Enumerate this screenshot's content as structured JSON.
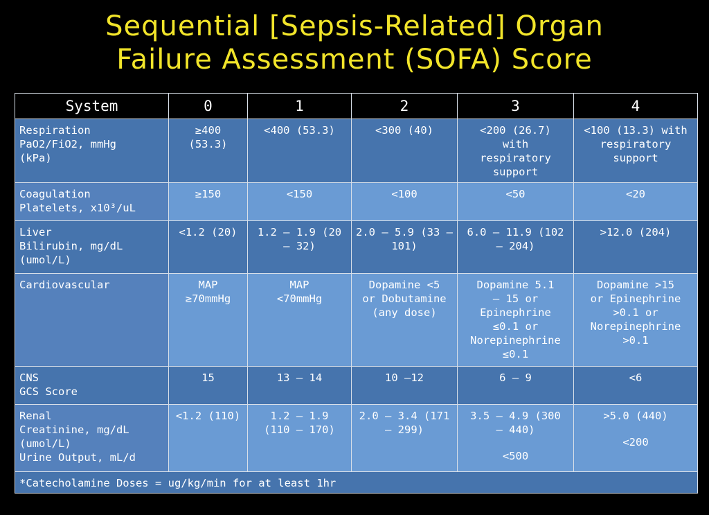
{
  "title": {
    "line1": "Sequential [Sepsis-Related] Organ",
    "line2": "Failure Assessment (SOFA) Score"
  },
  "table": {
    "headers": [
      "System",
      "0",
      "1",
      "2",
      "3",
      "4"
    ],
    "rows": [
      {
        "system": [
          "Respiration",
          "PaO2/FiO2, mmHg",
          "(kPa)"
        ],
        "cells": [
          [
            "≥400",
            "(53.3)"
          ],
          [
            "<400 (53.3)"
          ],
          [
            "<300 (40)"
          ],
          [
            "<200 (26.7)",
            "with",
            "respiratory",
            "support"
          ],
          [
            "<100 (13.3) with",
            "respiratory",
            "support"
          ]
        ]
      },
      {
        "system": [
          "Coagulation",
          "Platelets, x10³/uL"
        ],
        "cells": [
          [
            "≥150"
          ],
          [
            "<150"
          ],
          [
            "<100"
          ],
          [
            "<50"
          ],
          [
            "<20"
          ]
        ]
      },
      {
        "system": [
          "Liver",
          "Bilirubin, mg/dL",
          "(umol/L)"
        ],
        "cells": [
          [
            "<1.2 (20)"
          ],
          [
            "1.2 – 1.9 (20",
            "– 32)"
          ],
          [
            "2.0 – 5.9 (33 –",
            "101)"
          ],
          [
            "6.0 – 11.9 (102",
            "– 204)"
          ],
          [
            ">12.0 (204)"
          ]
        ]
      },
      {
        "system": [
          "Cardiovascular"
        ],
        "cells": [
          [
            "MAP",
            "≥70mmHg"
          ],
          [
            "MAP",
            "<70mmHg"
          ],
          [
            "Dopamine <5",
            "or Dobutamine",
            "(any dose)"
          ],
          [
            "Dopamine 5.1",
            "– 15 or",
            "Epinephrine",
            "≤0.1 or",
            "Norepinephrine",
            "≤0.1"
          ],
          [
            "Dopamine >15",
            "or Epinephrine",
            ">0.1 or",
            "Norepinephrine",
            ">0.1"
          ]
        ]
      },
      {
        "system": [
          "CNS",
          "GCS Score"
        ],
        "cells": [
          [
            "15"
          ],
          [
            "13 – 14"
          ],
          [
            "10 –12"
          ],
          [
            "6 – 9"
          ],
          [
            "<6"
          ]
        ]
      },
      {
        "system": [
          "Renal",
          "Creatinine, mg/dL",
          "(umol/L)",
          "Urine Output, mL/d"
        ],
        "cells": [
          [
            "<1.2 (110)"
          ],
          [
            "1.2 – 1.9",
            "(110 – 170)"
          ],
          [
            "2.0 – 3.4 (171",
            "– 299)"
          ],
          [
            "3.5 – 4.9 (300",
            "– 440)",
            "",
            "<500"
          ],
          [
            ">5.0 (440)",
            "",
            "<200"
          ]
        ]
      }
    ],
    "footer": "*Catecholamine Doses = ug/kg/min for at least 1hr"
  },
  "colors": {
    "title": "#f2e52a",
    "background": "#000000",
    "row_dark": "#4674ad",
    "row_light": "#6a9bd4"
  }
}
